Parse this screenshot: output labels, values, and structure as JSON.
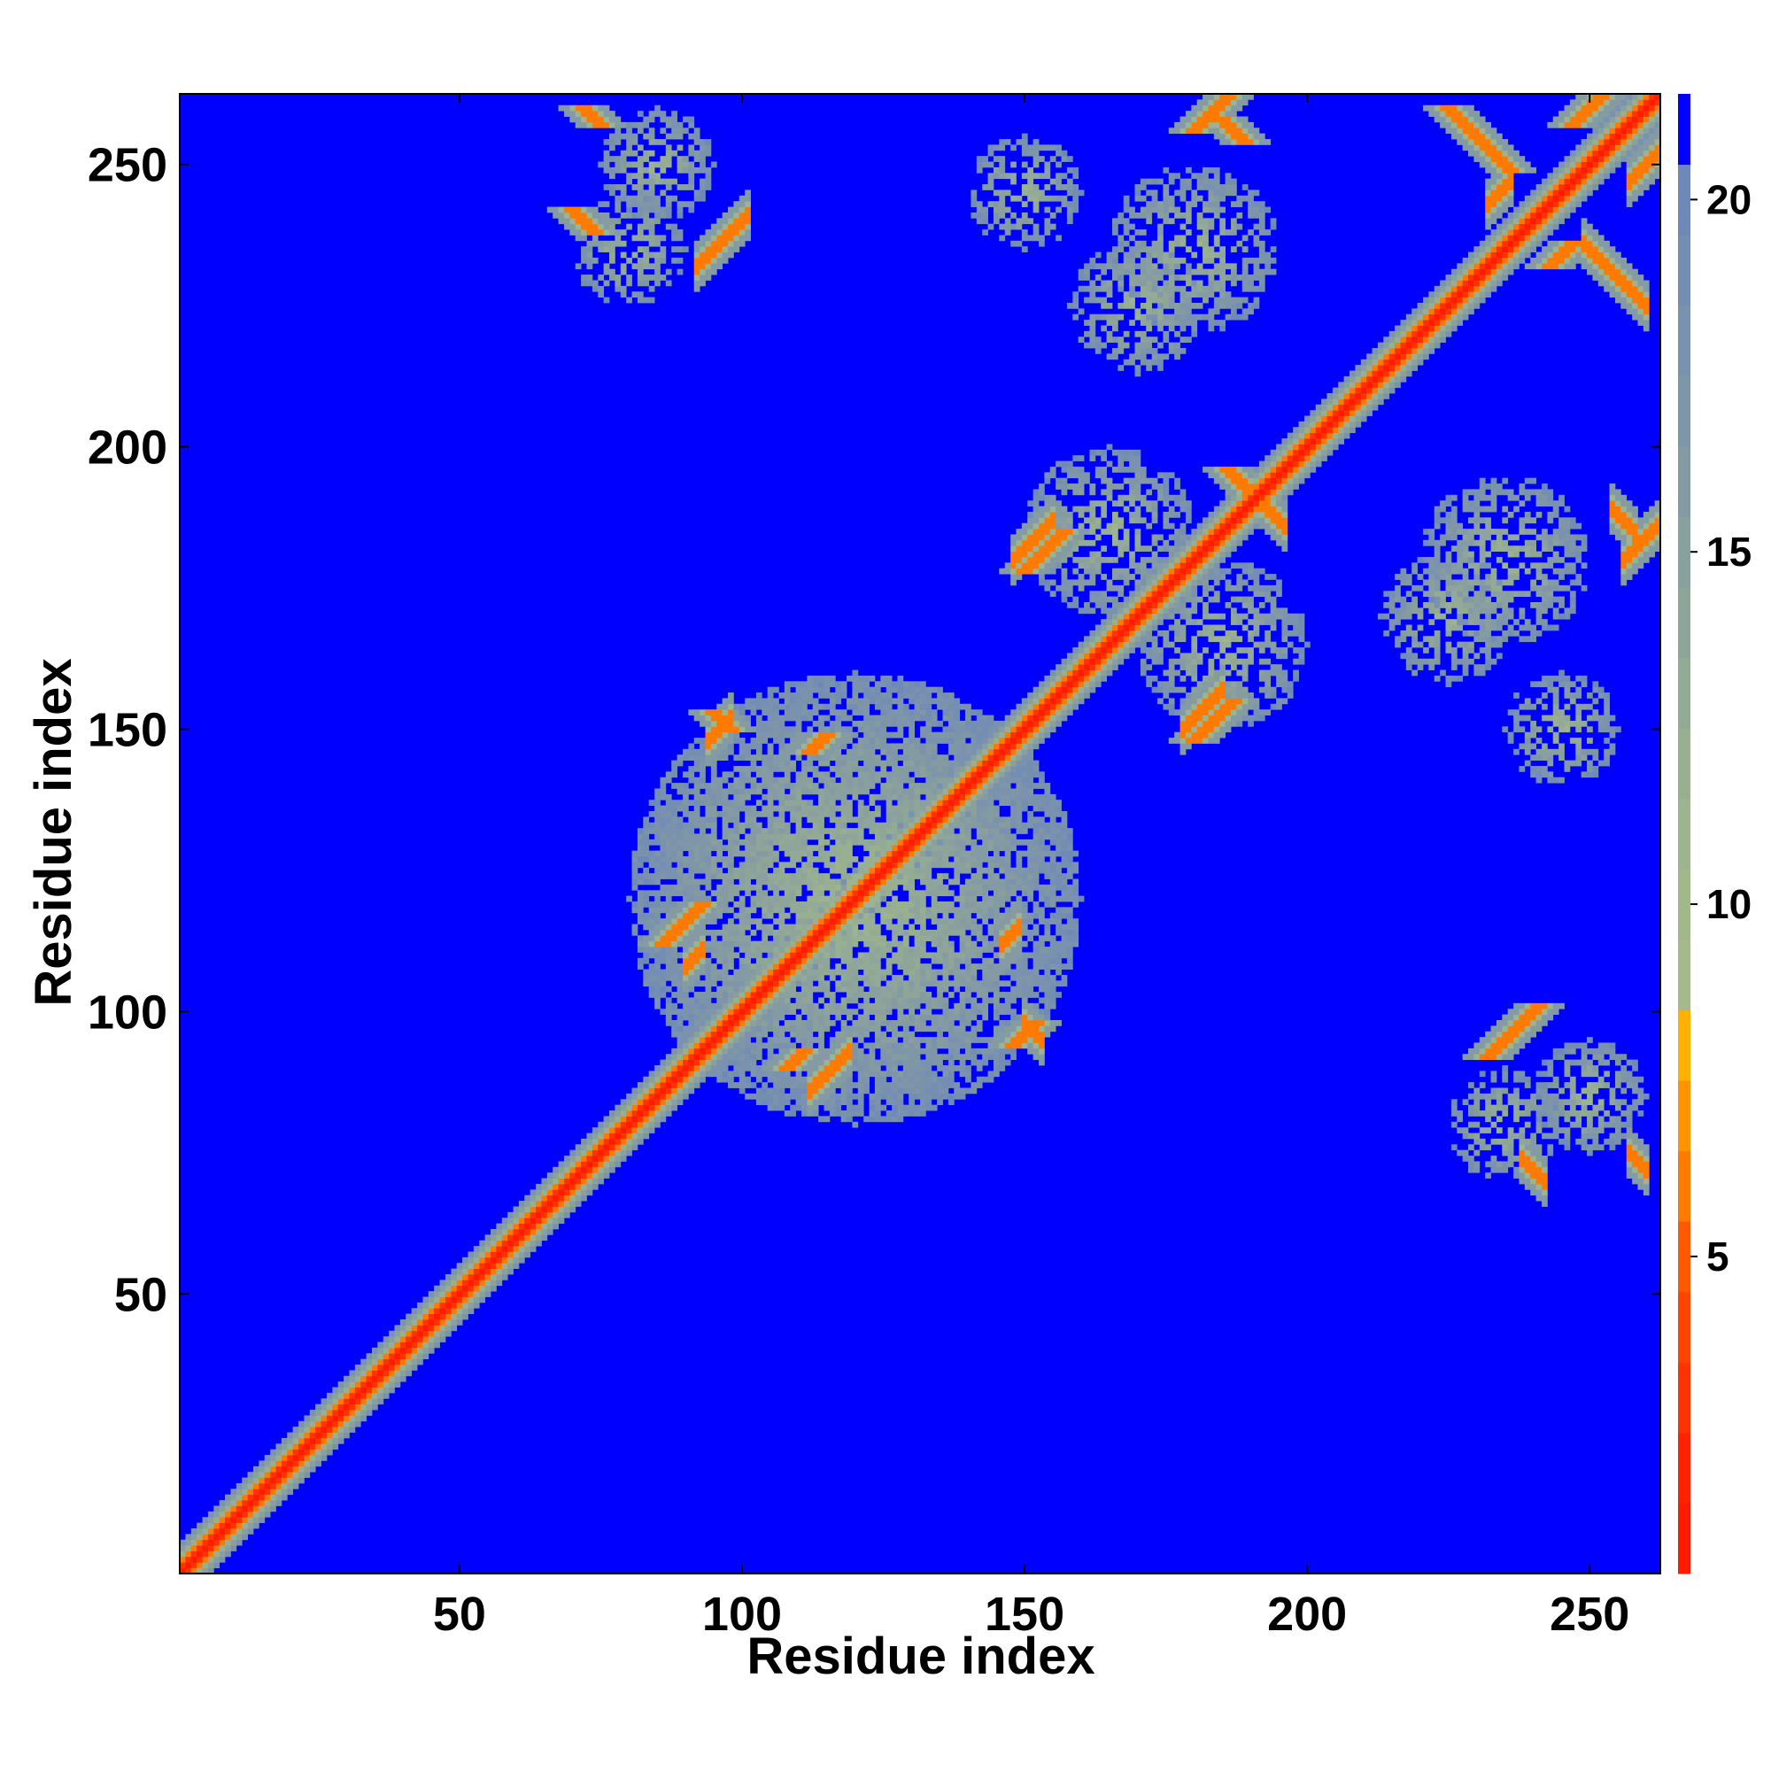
{
  "chart_data": {
    "type": "heatmap",
    "title": "",
    "xlabel": "Residue index",
    "ylabel": "Residue index",
    "n_residues": 262,
    "xlim": [
      1,
      262
    ],
    "ylim": [
      1,
      262
    ],
    "x_ticks": [
      50,
      100,
      150,
      200,
      250
    ],
    "y_ticks": [
      50,
      100,
      150,
      200,
      250
    ],
    "grid": false,
    "value_meaning": "pairwise distance",
    "colorbar": {
      "position": "right",
      "vmin": 1,
      "vmax": 21,
      "ticks": [
        5,
        10,
        15,
        20
      ],
      "colors": {
        "1": "#ff1a00",
        "2": "#ff2200",
        "3": "#ff3300",
        "4": "#ff4400",
        "5": "#ff5a00",
        "6": "#ff7a00",
        "7": "#ff9400",
        "8": "#ffb000",
        "9": "#a6b98a",
        "10": "#a1b88c",
        "11": "#9cb48f",
        "12": "#98af92",
        "13": "#93aa96",
        "14": "#8fa59a",
        "15": "#8aa09e",
        "16": "#859ba3",
        "17": "#7f96a8",
        "18": "#7a92ad",
        "19": "#748db2",
        "20": "#6e88b7",
        "21": "#0000ff"
      }
    },
    "background_value": 21,
    "features": [
      {
        "kind": "diagonal",
        "from": 1,
        "to": 262
      },
      {
        "kind": "anti",
        "i": 70,
        "j": 242,
        "len": 5
      },
      {
        "kind": "anti",
        "i": 185,
        "j": 258,
        "len": 5
      },
      {
        "kind": "anti",
        "i": 225,
        "j": 260,
        "len": 12
      },
      {
        "kind": "anti",
        "i": 186,
        "j": 196,
        "len": 6
      },
      {
        "kind": "anti",
        "i": 95,
        "j": 153,
        "len": 4
      },
      {
        "kind": "anti",
        "i": 72,
        "j": 260,
        "len": 4
      },
      {
        "kind": "parallel",
        "i": 180,
        "j": 256,
        "len": 8
      },
      {
        "kind": "parallel",
        "i": 180,
        "j": 148,
        "len": 8
      },
      {
        "kind": "parallel",
        "i": 86,
        "j": 112,
        "len": 8
      },
      {
        "kind": "parallel",
        "i": 108,
        "j": 90,
        "len": 4
      },
      {
        "kind": "parallel",
        "i": 150,
        "j": 178,
        "len": 8
      },
      {
        "kind": "parallel",
        "i": 112,
        "j": 146,
        "len": 4
      },
      {
        "kind": "parallel",
        "i": 148,
        "j": 94,
        "len": 5
      },
      {
        "kind": "parallel",
        "i": 232,
        "j": 92,
        "len": 10
      },
      {
        "kind": "parallel",
        "i": 247,
        "j": 257,
        "len": 10
      },
      {
        "kind": "parallel",
        "i": 243,
        "j": 232,
        "len": 5
      },
      {
        "kind": "blob",
        "cx": 120,
        "cy": 120,
        "r": 40
      },
      {
        "kind": "blob",
        "cx": 165,
        "cy": 185,
        "r": 15
      },
      {
        "kind": "blob",
        "cx": 225,
        "cy": 170,
        "r": 12
      },
      {
        "kind": "blob",
        "cx": 180,
        "cy": 235,
        "r": 15
      },
      {
        "kind": "blob",
        "cx": 85,
        "cy": 250,
        "r": 10
      },
      {
        "kind": "blob",
        "cx": 245,
        "cy": 150,
        "r": 10
      },
      {
        "kind": "blob",
        "cx": 235,
        "cy": 80,
        "r": 10
      }
    ]
  }
}
